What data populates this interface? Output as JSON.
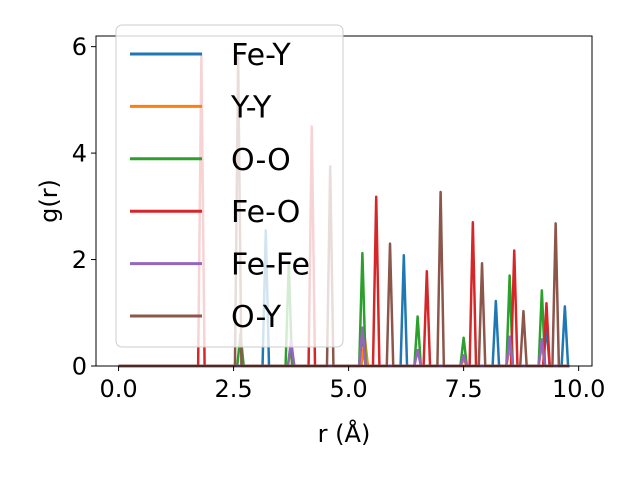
{
  "chart_data": {
    "type": "line",
    "xlabel": "r ($\\AA$)",
    "xlabel_display": "r (Å)",
    "ylabel": "g(r)",
    "xlim": [
      -0.49,
      10.29
    ],
    "ylim": [
      0,
      6.2
    ],
    "xticks": [
      "0.0",
      "2.5",
      "5.0",
      "7.5",
      "10.0"
    ],
    "yticks": [
      "0",
      "2",
      "4",
      "6"
    ],
    "legend_placement": "upper-left",
    "grid": false,
    "series": [
      {
        "name": "Fe-Y",
        "color": "#1f77b4",
        "peaks": [
          [
            3.2,
            2.55
          ],
          [
            5.3,
            0.6
          ],
          [
            6.2,
            2.08
          ],
          [
            8.2,
            1.22
          ],
          [
            9.3,
            0.75
          ],
          [
            9.7,
            1.12
          ]
        ],
        "x_end": 9.8
      },
      {
        "name": "Y-Y",
        "color": "#ff7f0e",
        "peaks": [
          [
            3.75,
            0.35
          ],
          [
            5.35,
            0.55
          ],
          [
            7.5,
            0.12
          ],
          [
            8.5,
            0.35
          ],
          [
            9.2,
            0.4
          ]
        ],
        "x_end": 9.8
      },
      {
        "name": "O-O",
        "color": "#2ca02c",
        "peaks": [
          [
            2.65,
            0.6
          ],
          [
            3.7,
            1.95
          ],
          [
            5.3,
            2.12
          ],
          [
            6.5,
            0.93
          ],
          [
            7.5,
            0.53
          ],
          [
            8.5,
            1.7
          ],
          [
            9.2,
            1.42
          ]
        ],
        "x_end": 9.8
      },
      {
        "name": "Fe-O",
        "color": "#d62728",
        "peaks": [
          [
            1.8,
            5.85
          ],
          [
            4.2,
            4.5
          ],
          [
            5.6,
            3.18
          ],
          [
            6.7,
            1.78
          ],
          [
            7.7,
            2.7
          ],
          [
            8.6,
            2.17
          ],
          [
            9.3,
            1.18
          ]
        ],
        "x_end": 9.8
      },
      {
        "name": "Fe-Fe",
        "color": "#9467bd",
        "peaks": [
          [
            3.75,
            0.48
          ],
          [
            5.3,
            0.72
          ],
          [
            6.5,
            0.3
          ],
          [
            7.5,
            0.2
          ],
          [
            8.5,
            0.55
          ],
          [
            9.2,
            0.5
          ]
        ],
        "x_end": 9.8
      },
      {
        "name": "O-Y",
        "color": "#8c564b",
        "peaks": [
          [
            2.6,
            5.8
          ],
          [
            4.6,
            3.75
          ],
          [
            5.9,
            2.3
          ],
          [
            7.0,
            3.27
          ],
          [
            7.9,
            1.93
          ],
          [
            8.8,
            1.03
          ],
          [
            9.5,
            2.68
          ]
        ],
        "x_end": 9.8
      }
    ]
  }
}
